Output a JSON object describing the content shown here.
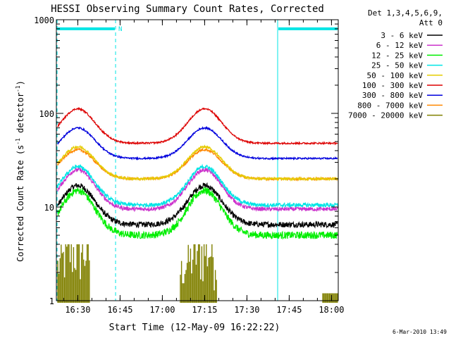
{
  "chart_data": {
    "type": "line",
    "title": "HESSI Observing Summary Count Rates, Corrected",
    "xlabel": "Start Time (12-May-09 16:22:22)",
    "ylabel_main": "Corrected Count Rate (s",
    "ylabel_sup1": "-1",
    "ylabel_mid": " detector",
    "ylabel_sup2": "-1",
    "ylabel_end": ")",
    "yscale": "log",
    "ylim": [
      1,
      1000
    ],
    "xlim_minutes": [
      0,
      100
    ],
    "x_ticks": [
      {
        "label": "16:30",
        "minute": 7.6
      },
      {
        "label": "16:45",
        "minute": 22.6
      },
      {
        "label": "17:00",
        "minute": 37.6
      },
      {
        "label": "17:15",
        "minute": 52.6
      },
      {
        "label": "17:30",
        "minute": 67.6
      },
      {
        "label": "17:45",
        "minute": 82.6
      },
      {
        "label": "18:00",
        "minute": 97.6
      }
    ],
    "y_ticks": [
      {
        "label": "1",
        "value": 1
      },
      {
        "label": "10",
        "value": 10
      },
      {
        "label": "100",
        "value": 100
      },
      {
        "label": "1000",
        "value": 1000
      }
    ],
    "legend_header": [
      "Det 1,3,4,5,6,9,",
      "Att 0"
    ],
    "legend_position": "right",
    "series": [
      {
        "name": "3 - 6 keV",
        "color": "#000000",
        "low": 6.5,
        "high": 17,
        "noise": 0.07
      },
      {
        "name": "6 - 12 keV",
        "color": "#cc33cc",
        "low": 9.5,
        "high": 25,
        "noise": 0.05
      },
      {
        "name": "12 - 25 keV",
        "color": "#00ee00",
        "low": 5,
        "high": 15,
        "noise": 0.09
      },
      {
        "name": "25 - 50 keV",
        "color": "#00e5e5",
        "low": 10.5,
        "high": 27,
        "noise": 0.05
      },
      {
        "name": "50 - 100 keV",
        "color": "#e5cc00",
        "low": 20,
        "high": 44,
        "noise": 0.03
      },
      {
        "name": "100 - 300 keV",
        "color": "#dd0000",
        "low": 48,
        "high": 112,
        "noise": 0.02
      },
      {
        "name": "300 - 800 keV",
        "color": "#0000dd",
        "low": 33,
        "high": 70,
        "noise": 0.02
      },
      {
        "name": "800 - 7000 keV",
        "color": "#ff8800",
        "low": 20,
        "high": 41,
        "noise": 0.03
      },
      {
        "name": "7000 - 20000 keV",
        "color": "#808000",
        "low": 1,
        "high": 3,
        "noise": 0
      }
    ],
    "peaks_minutes": [
      7.6,
      52.6
    ],
    "gaps_minutes": [
      [
        21,
        78.5
      ]
    ],
    "night_intervals_minutes": [
      [
        0,
        21
      ],
      [
        78.5,
        100
      ]
    ],
    "night_bar_value": 800,
    "night_marker": "N"
  },
  "footer": {
    "timestamp": "6-Mar-2010 13:49"
  },
  "colors": {
    "axes": "#000000",
    "night_marker": "#00e5e5",
    "background": "#ffffff"
  }
}
